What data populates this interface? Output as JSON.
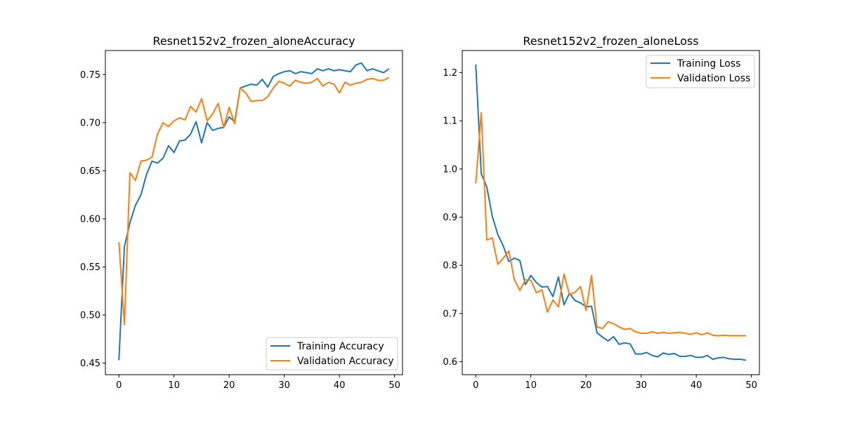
{
  "chart_data": [
    {
      "type": "line",
      "title": "Resnet152v2_frozen_aloneAccuracy",
      "xlabel": "",
      "ylabel": "",
      "xlim": [
        -2.45,
        51.45
      ],
      "ylim": [
        0.438,
        0.775
      ],
      "xticks": [
        0,
        10,
        20,
        30,
        40,
        50
      ],
      "yticks": [
        0.45,
        0.5,
        0.55,
        0.6,
        0.65,
        0.7,
        0.75
      ],
      "xtick_labels": [
        "0",
        "10",
        "20",
        "30",
        "40",
        "50"
      ],
      "ytick_labels": [
        "0.45",
        "0.50",
        "0.55",
        "0.60",
        "0.65",
        "0.70",
        "0.75"
      ],
      "grid": false,
      "legend_position": "lower-right",
      "series": [
        {
          "name": "Training Accuracy",
          "color": "#1f77b4",
          "x": [
            0,
            1,
            2,
            3,
            4,
            5,
            6,
            7,
            8,
            9,
            10,
            11,
            12,
            13,
            14,
            15,
            16,
            17,
            18,
            19,
            20,
            21,
            22,
            23,
            24,
            25,
            26,
            27,
            28,
            29,
            30,
            31,
            32,
            33,
            34,
            35,
            36,
            37,
            38,
            39,
            40,
            41,
            42,
            43,
            44,
            45,
            46,
            47,
            48,
            49
          ],
          "values": [
            0.453,
            0.571,
            0.596,
            0.614,
            0.625,
            0.646,
            0.66,
            0.658,
            0.663,
            0.676,
            0.669,
            0.681,
            0.682,
            0.688,
            0.701,
            0.679,
            0.7,
            0.692,
            0.694,
            0.695,
            0.706,
            0.701,
            0.736,
            0.738,
            0.74,
            0.739,
            0.745,
            0.737,
            0.748,
            0.751,
            0.753,
            0.754,
            0.751,
            0.753,
            0.752,
            0.751,
            0.756,
            0.754,
            0.756,
            0.754,
            0.755,
            0.754,
            0.753,
            0.76,
            0.762,
            0.754,
            0.756,
            0.754,
            0.752,
            0.756
          ]
        },
        {
          "name": "Validation Accuracy",
          "color": "#ff7f0e",
          "x": [
            0,
            1,
            2,
            3,
            4,
            5,
            6,
            7,
            8,
            9,
            10,
            11,
            12,
            13,
            14,
            15,
            16,
            17,
            18,
            19,
            20,
            21,
            22,
            23,
            24,
            25,
            26,
            27,
            28,
            29,
            30,
            31,
            32,
            33,
            34,
            35,
            36,
            37,
            38,
            39,
            40,
            41,
            42,
            43,
            44,
            45,
            46,
            47,
            48,
            49
          ],
          "values": [
            0.576,
            0.49,
            0.648,
            0.64,
            0.66,
            0.661,
            0.664,
            0.688,
            0.7,
            0.696,
            0.702,
            0.705,
            0.703,
            0.717,
            0.711,
            0.725,
            0.702,
            0.709,
            0.72,
            0.695,
            0.716,
            0.699,
            0.736,
            0.731,
            0.722,
            0.723,
            0.723,
            0.727,
            0.736,
            0.743,
            0.741,
            0.738,
            0.744,
            0.742,
            0.741,
            0.742,
            0.746,
            0.738,
            0.742,
            0.74,
            0.731,
            0.742,
            0.739,
            0.741,
            0.742,
            0.745,
            0.746,
            0.744,
            0.744,
            0.747
          ]
        }
      ]
    },
    {
      "type": "line",
      "title": "Resnet152v2_frozen_aloneLoss",
      "xlabel": "",
      "ylabel": "",
      "xlim": [
        -2.45,
        51.45
      ],
      "ylim": [
        0.573,
        1.246
      ],
      "xticks": [
        0,
        10,
        20,
        30,
        40,
        50
      ],
      "yticks": [
        0.6,
        0.7,
        0.8,
        0.9,
        1.0,
        1.1,
        1.2
      ],
      "xtick_labels": [
        "0",
        "10",
        "20",
        "30",
        "40",
        "50"
      ],
      "ytick_labels": [
        "0.6",
        "0.7",
        "0.8",
        "0.9",
        "1.0",
        "1.1",
        "1.2"
      ],
      "grid": false,
      "legend_position": "upper-right",
      "series": [
        {
          "name": "Training Loss",
          "color": "#1f77b4",
          "x": [
            0,
            1,
            2,
            3,
            4,
            5,
            6,
            7,
            8,
            9,
            10,
            11,
            12,
            13,
            14,
            15,
            16,
            17,
            18,
            19,
            20,
            21,
            22,
            23,
            24,
            25,
            26,
            27,
            28,
            29,
            30,
            31,
            32,
            33,
            34,
            35,
            36,
            37,
            38,
            39,
            40,
            41,
            42,
            43,
            44,
            45,
            46,
            47,
            48,
            49
          ],
          "values": [
            1.217,
            0.99,
            0.963,
            0.902,
            0.864,
            0.84,
            0.808,
            0.815,
            0.81,
            0.76,
            0.779,
            0.764,
            0.755,
            0.756,
            0.735,
            0.776,
            0.718,
            0.742,
            0.727,
            0.722,
            0.714,
            0.715,
            0.66,
            0.651,
            0.643,
            0.652,
            0.636,
            0.639,
            0.637,
            0.616,
            0.616,
            0.619,
            0.613,
            0.61,
            0.618,
            0.615,
            0.617,
            0.611,
            0.611,
            0.613,
            0.609,
            0.609,
            0.613,
            0.605,
            0.608,
            0.609,
            0.606,
            0.605,
            0.605,
            0.603
          ]
        },
        {
          "name": "Validation Loss",
          "color": "#ff7f0e",
          "x": [
            0,
            1,
            2,
            3,
            4,
            5,
            6,
            7,
            8,
            9,
            10,
            11,
            12,
            13,
            14,
            15,
            16,
            17,
            18,
            19,
            20,
            21,
            22,
            23,
            24,
            25,
            26,
            27,
            28,
            29,
            30,
            31,
            32,
            33,
            34,
            35,
            36,
            37,
            38,
            39,
            40,
            41,
            42,
            43,
            44,
            45,
            46,
            47,
            48,
            49
          ],
          "values": [
            0.97,
            1.117,
            0.853,
            0.857,
            0.802,
            0.815,
            0.83,
            0.77,
            0.748,
            0.77,
            0.769,
            0.743,
            0.749,
            0.703,
            0.728,
            0.714,
            0.782,
            0.739,
            0.744,
            0.756,
            0.706,
            0.779,
            0.672,
            0.669,
            0.683,
            0.679,
            0.672,
            0.667,
            0.669,
            0.662,
            0.659,
            0.659,
            0.662,
            0.659,
            0.661,
            0.659,
            0.66,
            0.661,
            0.659,
            0.657,
            0.66,
            0.656,
            0.66,
            0.655,
            0.654,
            0.655,
            0.654,
            0.654,
            0.654,
            0.654
          ]
        }
      ]
    }
  ]
}
